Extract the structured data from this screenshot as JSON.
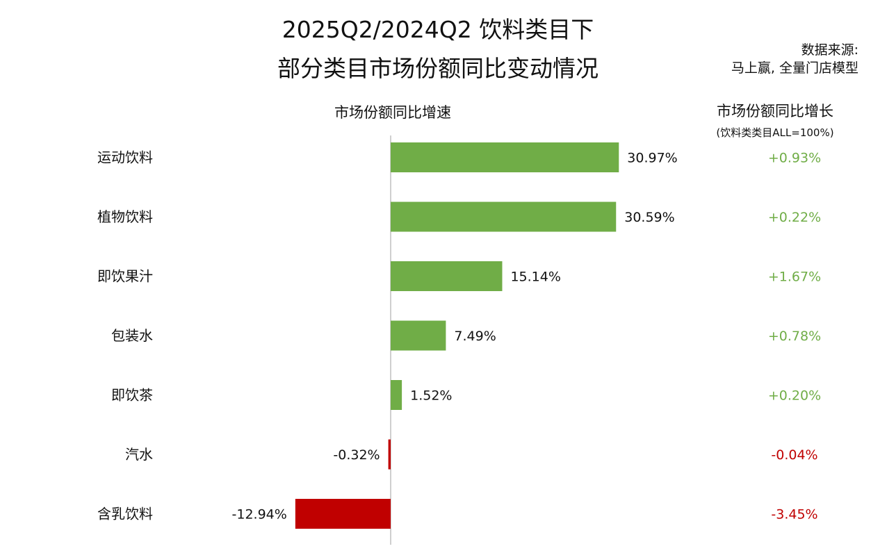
{
  "title_line1": "2025Q2/2024Q2 饮料类目下",
  "title_line2": "部分类目市场份额同比变动情况",
  "source_line1": "数据来源:",
  "source_line2": "马上赢, 全量门店模型",
  "left_header": "市场份额同比增速",
  "right_header": "市场份额同比增长",
  "right_subheader": "(饮料类类目ALL=100%)",
  "colors": {
    "positive": "#70AD47",
    "negative": "#C00000",
    "axis": "#BFBFBF"
  },
  "chart_data": {
    "type": "bar",
    "orientation": "horizontal",
    "categories": [
      "运动饮料",
      "植物饮料",
      "即饮果汁",
      "包装水",
      "即饮茶",
      "汽水",
      "含乳饮料"
    ],
    "series": [
      {
        "values": [
          30.97,
          30.59,
          15.14,
          7.49,
          1.52,
          -0.32,
          -12.94
        ],
        "labels": [
          "30.97%",
          "30.59%",
          "15.14%",
          "7.49%",
          "1.52%",
          "-0.32%",
          "-12.94%"
        ]
      }
    ],
    "share_change_labels": [
      "+0.93%",
      "+0.22%",
      "+1.67%",
      "+0.78%",
      "+0.20%",
      "-0.04%",
      "-3.45%"
    ],
    "share_change_values": [
      0.93,
      0.22,
      1.67,
      0.78,
      0.2,
      -0.04,
      -3.45
    ],
    "xlim": [
      -13,
      31
    ],
    "grid": false,
    "legend": "none"
  }
}
